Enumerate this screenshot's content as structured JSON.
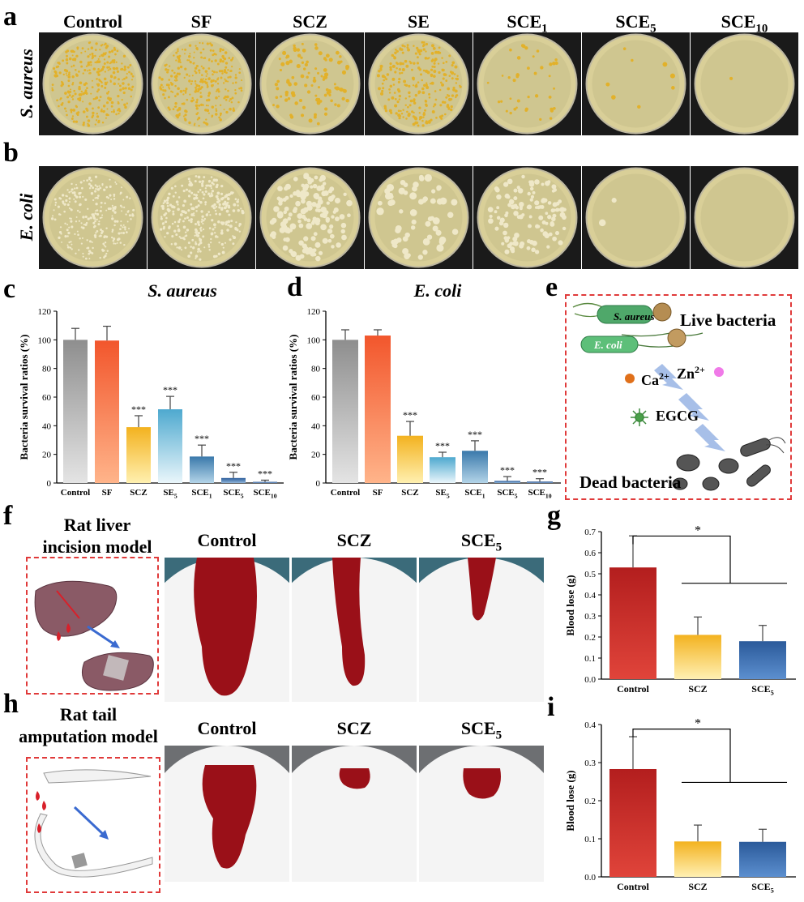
{
  "panels": {
    "a": "a",
    "b": "b",
    "c": "c",
    "d": "d",
    "e": "e",
    "f": "f",
    "g": "g",
    "h": "h",
    "i": "i"
  },
  "plates": {
    "columns": [
      {
        "base": "Control",
        "sub": ""
      },
      {
        "base": "SF",
        "sub": ""
      },
      {
        "base": "SCZ",
        "sub": ""
      },
      {
        "base": "SE",
        "sub": ""
      },
      {
        "base": "SCE",
        "sub": "1"
      },
      {
        "base": "SCE",
        "sub": "5"
      },
      {
        "base": "SCE",
        "sub": "10"
      }
    ],
    "row_a_label": "S. aureus",
    "row_b_label": "E. coli",
    "colors": {
      "aureus_colony": "#e2b12a",
      "coli_colony": "#efe8c8",
      "agar": "#d9cf98"
    }
  },
  "chart_data": [
    {
      "id": "c",
      "type": "bar",
      "title": "S. aureus",
      "ylabel": "Bacteria survival ratios (%)",
      "ylim": [
        0,
        120
      ],
      "yticks": [
        0,
        20,
        40,
        60,
        80,
        100,
        120
      ],
      "categories": [
        {
          "base": "Control",
          "sub": ""
        },
        {
          "base": "SF",
          "sub": ""
        },
        {
          "base": "SCZ",
          "sub": ""
        },
        {
          "base": "SE",
          "sub": "5"
        },
        {
          "base": "SCE",
          "sub": "1"
        },
        {
          "base": "SCE",
          "sub": "5"
        },
        {
          "base": "SCE",
          "sub": "10"
        }
      ],
      "values": [
        100,
        99.5,
        39,
        51.5,
        18.5,
        3.5,
        0.8
      ],
      "errors": [
        8,
        10,
        8,
        9,
        8,
        4,
        1.2
      ],
      "significance": [
        "",
        "",
        "***",
        "***",
        "***",
        "***",
        "***"
      ],
      "colors": [
        [
          "#e4e4e4",
          "#8e8e8e"
        ],
        [
          "#ffb48a",
          "#f2562c"
        ],
        [
          "#fff0b0",
          "#f3b21f"
        ],
        [
          "#eaf6fb",
          "#4ea9cf"
        ],
        [
          "#b3d4e8",
          "#3a79ab"
        ],
        [
          "#8fb4d8",
          "#2b5c9a"
        ],
        [
          "#7ea3cc",
          "#254f8d"
        ]
      ]
    },
    {
      "id": "d",
      "type": "bar",
      "title": "E. coli",
      "ylabel": "Bacteria survival ratios (%)",
      "ylim": [
        0,
        120
      ],
      "yticks": [
        0,
        20,
        40,
        60,
        80,
        100,
        120
      ],
      "categories": [
        {
          "base": "Control",
          "sub": ""
        },
        {
          "base": "SF",
          "sub": ""
        },
        {
          "base": "SCZ",
          "sub": ""
        },
        {
          "base": "SE",
          "sub": "5"
        },
        {
          "base": "SCE",
          "sub": "1"
        },
        {
          "base": "SCE",
          "sub": "5"
        },
        {
          "base": "SCE",
          "sub": "10"
        }
      ],
      "values": [
        100,
        103,
        33,
        18,
        22.5,
        1.5,
        1
      ],
      "errors": [
        7,
        4,
        10,
        3.5,
        7,
        3,
        2
      ],
      "significance": [
        "",
        "",
        "***",
        "***",
        "***",
        "***",
        "***"
      ],
      "colors": [
        [
          "#e4e4e4",
          "#8e8e8e"
        ],
        [
          "#ffb48a",
          "#f2562c"
        ],
        [
          "#fff0b0",
          "#f3b21f"
        ],
        [
          "#eaf6fb",
          "#4ea9cf"
        ],
        [
          "#b3d4e8",
          "#3a79ab"
        ],
        [
          "#8fb4d8",
          "#2b5c9a"
        ],
        [
          "#7ea3cc",
          "#254f8d"
        ]
      ]
    },
    {
      "id": "g",
      "type": "bar",
      "title": "",
      "ylabel": "Blood lose (g)",
      "ylim": [
        0,
        0.7
      ],
      "yticks": [
        "0.0",
        "0.1",
        "0.2",
        "0.3",
        "0.4",
        "0.5",
        "0.6",
        "0.7"
      ],
      "categories": [
        {
          "base": "Control",
          "sub": ""
        },
        {
          "base": "SCZ",
          "sub": ""
        },
        {
          "base": "SCE",
          "sub": "5"
        }
      ],
      "values": [
        0.53,
        0.21,
        0.18
      ],
      "errors": [
        0.15,
        0.085,
        0.075
      ],
      "significance_bracket": "*",
      "colors": [
        [
          "#e0443a",
          "#b31e1e"
        ],
        [
          "#fff0b3",
          "#f3b21f"
        ],
        [
          "#5c8fcf",
          "#2b5a9a"
        ]
      ]
    },
    {
      "id": "i",
      "type": "bar",
      "title": "",
      "ylabel": "Blood lose (g)",
      "ylim": [
        0,
        0.4
      ],
      "yticks": [
        "0.0",
        "0.1",
        "0.2",
        "0.3",
        "0.4"
      ],
      "categories": [
        {
          "base": "Control",
          "sub": ""
        },
        {
          "base": "SCZ",
          "sub": ""
        },
        {
          "base": "SCE",
          "sub": "5"
        }
      ],
      "values": [
        0.283,
        0.093,
        0.092
      ],
      "errors": [
        0.085,
        0.043,
        0.033
      ],
      "significance_bracket": "*",
      "colors": [
        [
          "#e0443a",
          "#b31e1e"
        ],
        [
          "#fff0b3",
          "#f3b21f"
        ],
        [
          "#5c8fcf",
          "#2b5a9a"
        ]
      ]
    }
  ],
  "schematic": {
    "live": "Live bacteria",
    "dead": "Dead bacteria",
    "aureus": "S. aureus",
    "coli": "E. coli",
    "ca": {
      "base": "Ca",
      "sup": "2+"
    },
    "zn": {
      "base": "Zn",
      "sup": "2+"
    },
    "egcg": "EGCG"
  },
  "liver": {
    "title_line1": "Rat liver",
    "title_line2": "incision model",
    "photos": [
      {
        "base": "Control",
        "sub": ""
      },
      {
        "base": "SCZ",
        "sub": ""
      },
      {
        "base": "SCE",
        "sub": "5"
      }
    ]
  },
  "tail": {
    "title_line1": "Rat tail",
    "title_line2": "amputation model",
    "photos": [
      {
        "base": "Control",
        "sub": ""
      },
      {
        "base": "SCZ",
        "sub": ""
      },
      {
        "base": "SCE",
        "sub": "5"
      }
    ]
  }
}
